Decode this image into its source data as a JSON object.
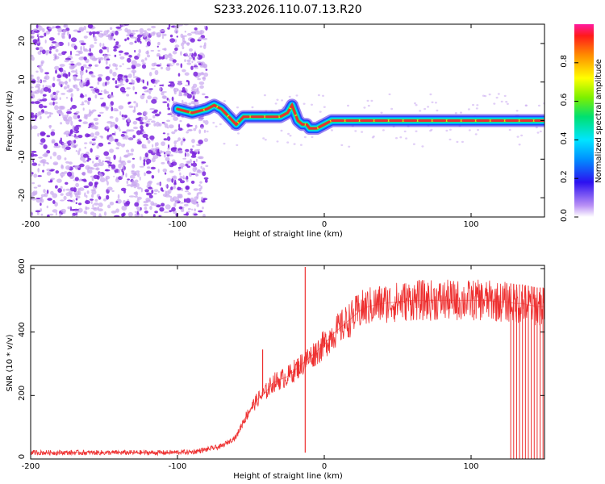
{
  "title": "S233.2026.110.07.13.R20",
  "colors": {
    "line": "#ee3030",
    "ridge_core": "#e83030",
    "noise_dark": "#7a22dc",
    "noise_light": "#c9a8f0"
  },
  "chart_data": [
    {
      "type": "heatmap",
      "name": "spectrogram",
      "xlabel": "Height of straight line (km)",
      "ylabel": "Frequency (Hz)",
      "xlim": [
        -200,
        150
      ],
      "ylim": [
        -25,
        25
      ],
      "xticks": [
        -200,
        -100,
        0,
        100
      ],
      "xtick_labels": [
        "-200",
        "-100",
        "0",
        "100"
      ],
      "yticks": [
        -20,
        -10,
        0,
        10,
        20
      ],
      "ytick_labels": [
        "-20",
        "-10",
        "0",
        "10",
        "20"
      ],
      "colorbar": {
        "label": "Normalized spectral amplitude",
        "range": [
          0.0,
          1.0
        ],
        "ticks": [
          0.0,
          0.2,
          0.4,
          0.6,
          0.8
        ],
        "tick_labels": [
          "0.0",
          "0.2",
          "0.4",
          "0.6",
          "0.8"
        ],
        "colormap": "rainbow (violet → blue → cyan → green → yellow → orange → red → magenta)"
      },
      "ridge": {
        "x": [
          -100,
          -90,
          -80,
          -75,
          -70,
          -65,
          -60,
          -55,
          -50,
          -40,
          -30,
          -25,
          -22,
          -20,
          -18,
          -15,
          -12,
          -10,
          -5,
          0,
          5,
          10,
          20,
          40,
          60,
          80,
          100,
          120,
          140,
          150
        ],
        "y": [
          3,
          2,
          3,
          4,
          3,
          1,
          -1,
          1,
          1,
          1,
          1,
          2,
          4,
          2,
          0,
          -1,
          -1,
          -2,
          -2,
          -1,
          0,
          0,
          0,
          0,
          0,
          0,
          0,
          0,
          0,
          0
        ]
      }
    },
    {
      "type": "line",
      "name": "snr",
      "xlabel": "Height of straight line (km)",
      "ylabel": "SNR (10 * v/v)",
      "xlim": [
        -200,
        150
      ],
      "ylim": [
        0,
        610
      ],
      "xticks": [
        -200,
        -100,
        0,
        100
      ],
      "xtick_labels": [
        "-200",
        "-100",
        "0",
        "100"
      ],
      "yticks": [
        0,
        200,
        400,
        600
      ],
      "ytick_labels": [
        "0",
        "200",
        "400",
        "600"
      ],
      "series": [
        {
          "name": "SNR",
          "x": [
            -200,
            -150,
            -110,
            -90,
            -80,
            -70,
            -60,
            -55,
            -50,
            -45,
            -40,
            -35,
            -30,
            -25,
            -20,
            -15,
            -10,
            -5,
            0,
            5,
            10,
            15,
            20,
            25,
            30,
            40,
            50,
            60,
            70,
            80,
            90,
            100,
            110,
            120,
            125,
            130,
            135,
            140,
            145,
            150
          ],
          "y": [
            20,
            20,
            20,
            22,
            30,
            40,
            70,
            120,
            160,
            190,
            210,
            240,
            250,
            260,
            280,
            300,
            320,
            340,
            360,
            390,
            410,
            430,
            450,
            470,
            480,
            490,
            495,
            500,
            500,
            500,
            500,
            500,
            500,
            495,
            495,
            490,
            490,
            485,
            480,
            480
          ],
          "spikes": [
            {
              "x": -42,
              "y": 345
            },
            {
              "x": -13,
              "y": 605
            },
            {
              "x": -13,
              "y": 20
            }
          ],
          "dropouts_x": [
            127,
            129,
            131,
            133,
            135,
            137,
            139,
            141,
            143,
            145,
            147,
            149
          ]
        }
      ]
    }
  ]
}
